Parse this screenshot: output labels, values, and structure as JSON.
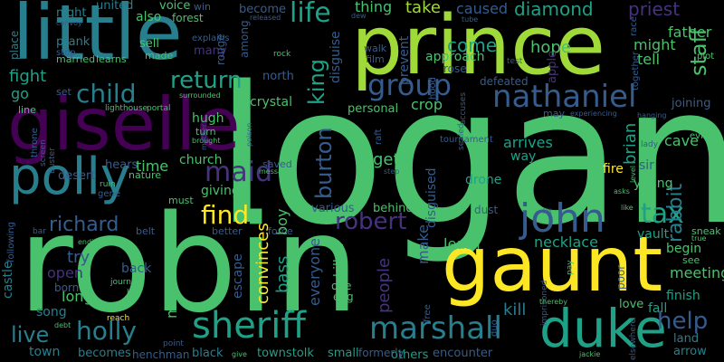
{
  "palette": {
    "background": "#000000",
    "yellow": "#fde725",
    "lime": "#a0da39",
    "green": "#4ac16d",
    "teal_green": "#1fa187",
    "teal": "#277f8e",
    "blue": "#365c8d",
    "indigo": "#46327e",
    "purple": "#440154"
  },
  "words": {
    "logan": "logan",
    "robin": "robin",
    "prince": "prince",
    "gaunt": "gaunt",
    "little": "little",
    "giselle": "giselle",
    "polly": "polly",
    "duke": "duke",
    "sheriff": "sheriff",
    "marshall": "marshall",
    "nathaniel": "nathaniel",
    "john": "john",
    "child": "child",
    "group": "group",
    "return": "return",
    "life": "life",
    "king": "king",
    "burton": "burton",
    "maid": "maid",
    "find": "find",
    "robert": "robert",
    "richard": "richard",
    "holly": "holly",
    "tax": "tax",
    "rabbit": "rabbit",
    "staff": "staff",
    "help": "help",
    "live": "live",
    "diamond": "diamond",
    "priest": "priest",
    "father": "father",
    "thing": "thing",
    "take": "take",
    "caused": "caused",
    "fight": "fight",
    "come": "come",
    "hope": "hope",
    "might": "might",
    "tell": "tell",
    "crop": "crop",
    "brian": "brian",
    "cave": "cave",
    "joining": "joining",
    "get": "get",
    "arrives": "arrives",
    "way": "way",
    "fire": "fire",
    "young": "young",
    "sir": "sir",
    "learn": "learn",
    "necklace": "necklace",
    "vault": "vault",
    "begin": "begin",
    "meeting": "meeting",
    "finish": "finish",
    "kill": "kill",
    "fall": "fall",
    "love": "love",
    "land": "land",
    "arrow": "arrow",
    "encounter": "encounter",
    "others": "others",
    "small": "small",
    "formerly": "formerly",
    "townstolk": "townstolk",
    "black": "black",
    "henchman": "henchman",
    "becomes": "becomes",
    "town": "town",
    "song": "song",
    "long": "long",
    "open": "open",
    "try": "try",
    "castle": "castle",
    "born": "born",
    "back": "back",
    "meanwhile": "meanwhile",
    "escape": "escape",
    "convinces": "convinces",
    "bass": "bass",
    "everyone": "everyone",
    "killed": "killed",
    "people": "people",
    "make": "make",
    "disguised": "disguised",
    "disguise": "disguise",
    "time": "time",
    "church": "church",
    "hugh": "hugh",
    "crystal": "crystal",
    "giving": "giving",
    "boy": "boy",
    "various": "various",
    "behind": "behind",
    "north": "north",
    "personal": "personal",
    "approach": "approach",
    "rose": "rose",
    "defeated": "defeated",
    "walk": "walk",
    "film": "film",
    "prevent": "prevent",
    "united": "united",
    "voice": "voice",
    "win": "win",
    "night": "night",
    "also": "also",
    "forest": "forest",
    "prank": "prank",
    "sell": "sell",
    "explains": "explains",
    "many": "many",
    "become": "become",
    "made": "made",
    "married": "married",
    "learns": "learns",
    "rouge": "rouge",
    "among": "among",
    "place": "place",
    "stop": "stop",
    "set": "set",
    "go": "go",
    "line": "line",
    "lighthouse": "lighthouse",
    "portal": "portal",
    "turn": "turn",
    "brought": "brought",
    "surrounded": "surrounded",
    "hears": "hears",
    "desert": "desert",
    "nature": "nature",
    "ruin": "ruin",
    "gene": "gene",
    "must": "must",
    "better": "better",
    "force": "force",
    "saved": "saved",
    "message": "message",
    "belt": "belt",
    "journey": "journey",
    "left": "left",
    "reach": "reach",
    "debt": "debt",
    "point": "point",
    "give": "give",
    "following": "following",
    "bar": "bar",
    "ending": "ending",
    "one": "one",
    "egg": "egg",
    "free": "free",
    "duo": "duo",
    "dust": "dust",
    "drone": "drone",
    "sneak": "sneak",
    "see": "see",
    "poor": "poor",
    "pay": "pay",
    "imprisoned": "imprisoned",
    "thereby": "thereby",
    "jackie": "jackie",
    "elsewhere": "elsewhere",
    "hood": "hood",
    "accuses": "accuses",
    "raft": "raft",
    "sealed": "sealed",
    "tournament": "tournament",
    "step": "step",
    "lady": "lady",
    "want": "want",
    "evil": "evil",
    "may": "may",
    "experiencing": "experiencing",
    "hanging": "hanging",
    "apple": "apple",
    "plot": "plot",
    "together": "together",
    "race": "race",
    "tube": "tube",
    "convoy": "convoy",
    "released": "released",
    "dew": "dew",
    "test": "test",
    "rock": "rock",
    "level": "level",
    "asks": "asks",
    "like": "like",
    "mother": "mother",
    "throne": "throne",
    "screen": "screen",
    "buster": "buster",
    "poison": "poison",
    "true": "true",
    "kit": "kit"
  }
}
